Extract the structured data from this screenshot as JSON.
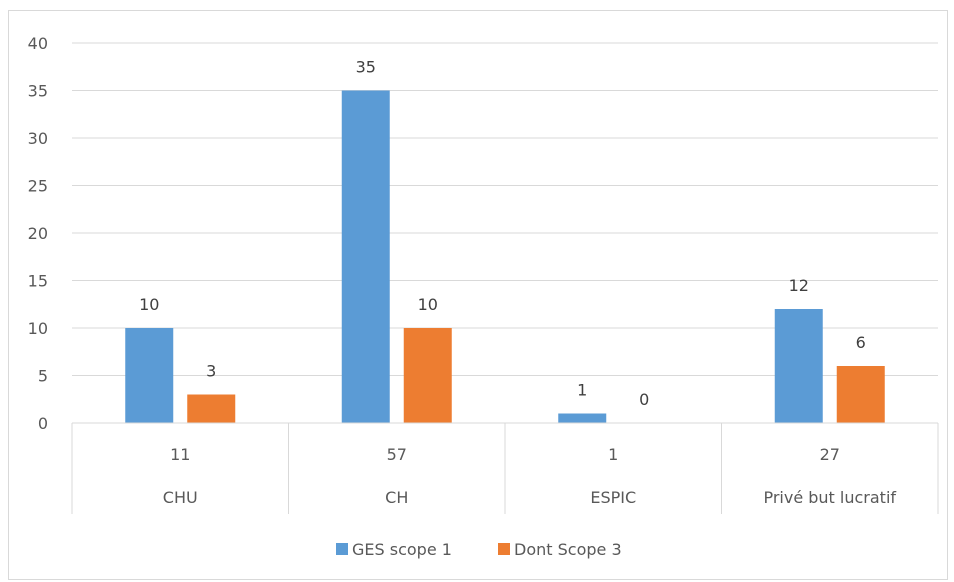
{
  "chart_data": {
    "type": "bar",
    "categories": [
      "CHU",
      "CH",
      "ESPIC",
      "Privé but lucratif"
    ],
    "category_counts": [
      "11",
      "57",
      "1",
      "27"
    ],
    "series": [
      {
        "name": "GES scope 1",
        "values": [
          10,
          35,
          1,
          12
        ],
        "color": "#5b9bd5"
      },
      {
        "name": "Dont Scope 3",
        "values": [
          3,
          10,
          0,
          6
        ],
        "color": "#ed7d31"
      }
    ],
    "ylim": [
      0,
      40
    ],
    "yticks": [
      0,
      5,
      10,
      15,
      20,
      25,
      30,
      35,
      40
    ],
    "grid": true,
    "legend_position": "bottom"
  }
}
